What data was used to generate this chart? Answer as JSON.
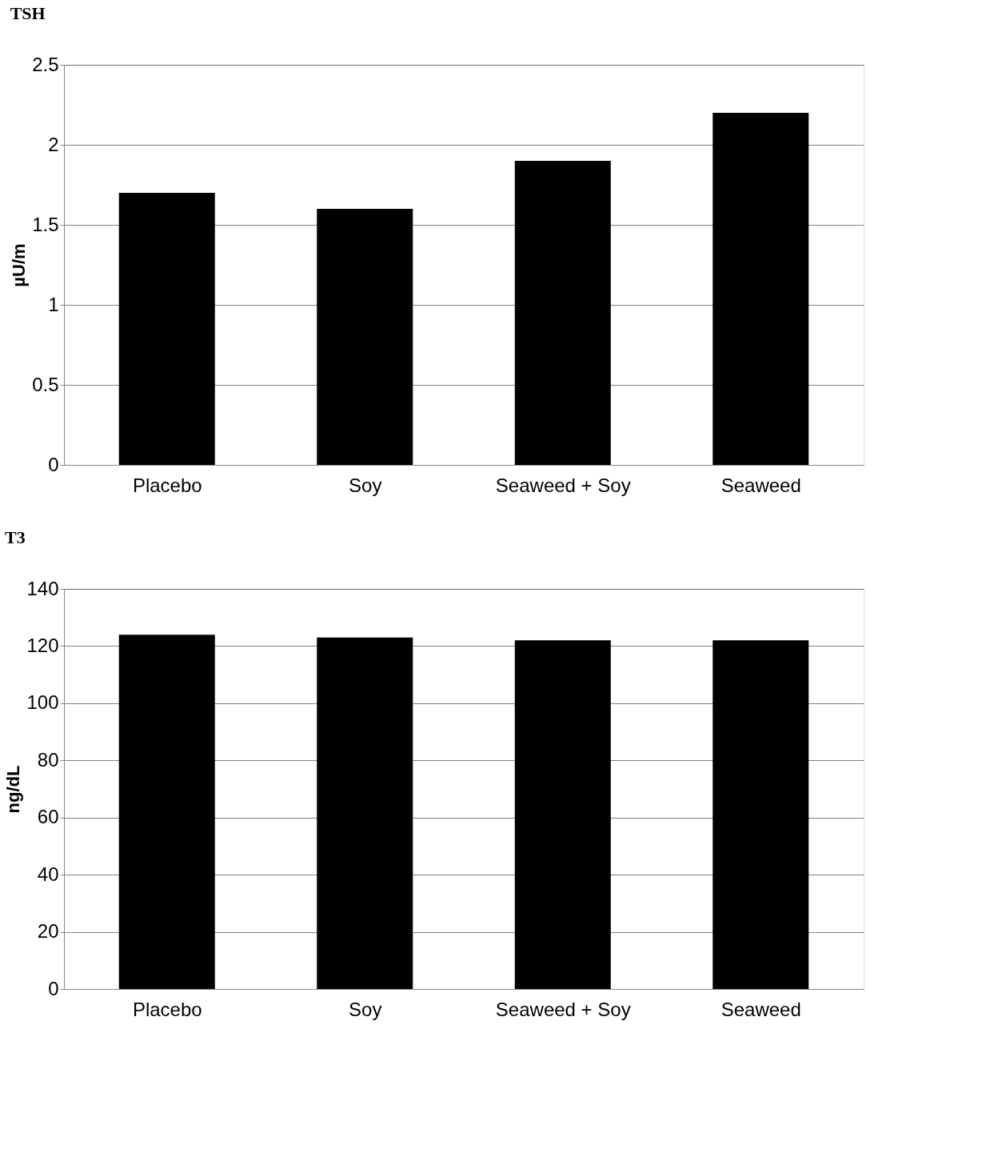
{
  "chart_data": [
    {
      "type": "bar",
      "title": "TSH",
      "ylabel": "µU/m",
      "categories": [
        "Placebo",
        "Soy",
        "Seaweed + Soy",
        "Seaweed"
      ],
      "values": [
        1.7,
        1.6,
        1.9,
        2.2
      ],
      "color": "#000000",
      "ylim": [
        0,
        2.5
      ],
      "yticks": [
        0,
        0.5,
        1,
        1.5,
        2,
        2.5
      ],
      "grid": "y"
    },
    {
      "type": "bar",
      "title": "T3",
      "ylabel": "ng/dL",
      "categories": [
        "Placebo",
        "Soy",
        "Seaweed + Soy",
        "Seaweed"
      ],
      "values": [
        124,
        123,
        122,
        122
      ],
      "color": "#000000",
      "ylim": [
        0,
        140
      ],
      "yticks": [
        0,
        20,
        40,
        60,
        80,
        100,
        120,
        140
      ],
      "grid": "y"
    }
  ]
}
